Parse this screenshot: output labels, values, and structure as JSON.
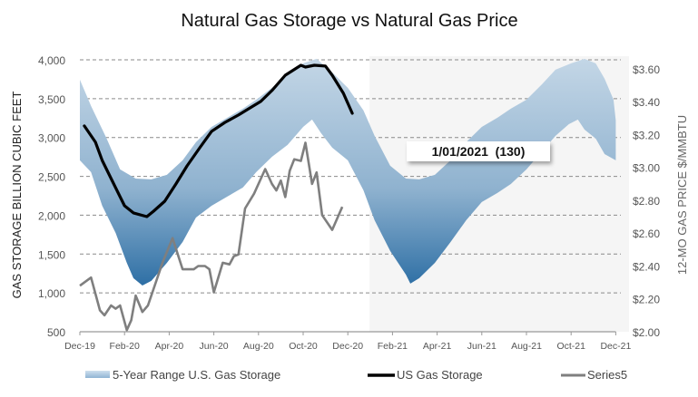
{
  "chart_data": {
    "type": "area",
    "title": "Natural Gas Storage vs Natural Gas Price",
    "ylabel": "GAS STORAGE BILLION CUBIC FEET",
    "y2label": "12-MO GAS PRICE $/MMBTU",
    "ylim": [
      500,
      4000
    ],
    "y2lim": [
      2.0,
      3.655
    ],
    "yticks": [
      "500",
      "1,000",
      "1,500",
      "2,000",
      "2,500",
      "3,000",
      "3,500",
      "4,000"
    ],
    "y2ticks": [
      "$2.00",
      "$2.20",
      "$2.40",
      "$2.60",
      "$2.80",
      "$3.00",
      "$3.20",
      "$3.40",
      "$3.60"
    ],
    "xticks": [
      "Dec-19",
      "Feb-20",
      "Apr-20",
      "Jun-20",
      "Aug-20",
      "Oct-20",
      "Dec-20",
      "Feb-21",
      "Apr-21",
      "Jun-21",
      "Aug-21",
      "Oct-21",
      "Dec-21"
    ],
    "x_unit": "months since Dec-19",
    "grid": true,
    "legend_position": "bottom",
    "forecast_region_start_month": 12.97,
    "annotation": "1/01/2021  (130)",
    "colors": {
      "band_top": "#c3d6e6",
      "band_bottom": "#2569a1",
      "storage": "#000000",
      "series5": "#7f7f7f",
      "forecast_bg": "#f5f5f5"
    },
    "series": [
      {
        "name": "5-Year Range U.S. Gas Storage",
        "axis": "left",
        "upper": [
          [
            0,
            3744
          ],
          [
            0.5,
            3406
          ],
          [
            1.2,
            2986
          ],
          [
            1.8,
            2589
          ],
          [
            2.5,
            2472
          ],
          [
            3.2,
            2461
          ],
          [
            3.9,
            2519
          ],
          [
            4.6,
            2706
          ],
          [
            5.2,
            2939
          ],
          [
            5.9,
            3137
          ],
          [
            6.6,
            3254
          ],
          [
            7.3,
            3371
          ],
          [
            7.9,
            3487
          ],
          [
            8.6,
            3639
          ],
          [
            9.3,
            3803
          ],
          [
            10.0,
            3954
          ],
          [
            10.6,
            4013
          ],
          [
            11.3,
            3838
          ],
          [
            12.0,
            3639
          ],
          [
            12.7,
            3350
          ],
          [
            13.2,
            3021
          ],
          [
            13.9,
            2636
          ],
          [
            14.6,
            2472
          ],
          [
            15.2,
            2461
          ],
          [
            15.9,
            2519
          ],
          [
            16.6,
            2706
          ],
          [
            17.3,
            2939
          ],
          [
            18.0,
            3137
          ],
          [
            18.7,
            3254
          ],
          [
            19.3,
            3371
          ],
          [
            20.0,
            3487
          ],
          [
            20.7,
            3686
          ],
          [
            21.3,
            3873
          ],
          [
            22.0,
            3954
          ],
          [
            22.6,
            4013
          ],
          [
            23.1,
            3954
          ],
          [
            23.5,
            3756
          ],
          [
            23.9,
            3488
          ],
          [
            24.0,
            3219
          ]
        ],
        "lower": [
          [
            0,
            2706
          ],
          [
            0.5,
            2554
          ],
          [
            1.0,
            2122
          ],
          [
            1.6,
            1772
          ],
          [
            2.1,
            1387
          ],
          [
            2.4,
            1189
          ],
          [
            2.8,
            1095
          ],
          [
            3.2,
            1154
          ],
          [
            3.9,
            1387
          ],
          [
            4.6,
            1655
          ],
          [
            5.2,
            1970
          ],
          [
            5.9,
            2122
          ],
          [
            6.6,
            2239
          ],
          [
            7.3,
            2356
          ],
          [
            7.9,
            2554
          ],
          [
            8.6,
            2752
          ],
          [
            9.3,
            2904
          ],
          [
            10.0,
            3137
          ],
          [
            10.4,
            3231
          ],
          [
            10.8,
            3056
          ],
          [
            11.3,
            2869
          ],
          [
            12.0,
            2706
          ],
          [
            12.7,
            2321
          ],
          [
            13.2,
            1935
          ],
          [
            13.9,
            1539
          ],
          [
            14.6,
            1235
          ],
          [
            14.8,
            1119
          ],
          [
            15.2,
            1189
          ],
          [
            15.9,
            1387
          ],
          [
            16.6,
            1655
          ],
          [
            17.3,
            1935
          ],
          [
            18.0,
            2169
          ],
          [
            18.7,
            2286
          ],
          [
            19.3,
            2402
          ],
          [
            20.0,
            2589
          ],
          [
            20.7,
            2822
          ],
          [
            21.3,
            3021
          ],
          [
            21.9,
            3172
          ],
          [
            22.3,
            3231
          ],
          [
            22.6,
            3102
          ],
          [
            23.1,
            2986
          ],
          [
            23.5,
            2787
          ],
          [
            24.0,
            2706
          ]
        ]
      },
      {
        "name": "US Gas Storage",
        "axis": "left",
        "points": [
          [
            0.2,
            3149
          ],
          [
            0.7,
            2939
          ],
          [
            1.0,
            2705
          ],
          [
            1.4,
            2472
          ],
          [
            2.0,
            2122
          ],
          [
            2.4,
            2029
          ],
          [
            3.0,
            1982
          ],
          [
            3.3,
            2052
          ],
          [
            3.8,
            2180
          ],
          [
            4.3,
            2402
          ],
          [
            4.8,
            2635
          ],
          [
            5.4,
            2880
          ],
          [
            5.9,
            3079
          ],
          [
            6.5,
            3195
          ],
          [
            7.1,
            3289
          ],
          [
            7.7,
            3394
          ],
          [
            8.1,
            3464
          ],
          [
            8.6,
            3604
          ],
          [
            9.2,
            3802
          ],
          [
            9.9,
            3930
          ],
          [
            10.1,
            3907
          ],
          [
            10.5,
            3930
          ],
          [
            11.0,
            3919
          ],
          [
            11.3,
            3802
          ],
          [
            11.8,
            3569
          ],
          [
            12.2,
            3312
          ]
        ]
      },
      {
        "name": "Series5",
        "axis": "right",
        "points": [
          [
            0,
            2.28
          ],
          [
            0.5,
            2.33
          ],
          [
            0.9,
            2.13
          ],
          [
            1.1,
            2.1
          ],
          [
            1.4,
            2.16
          ],
          [
            1.6,
            2.14
          ],
          [
            1.8,
            2.16
          ],
          [
            2.1,
            2.01
          ],
          [
            2.3,
            2.07
          ],
          [
            2.5,
            2.22
          ],
          [
            2.8,
            2.12
          ],
          [
            3.05,
            2.16
          ],
          [
            3.7,
            2.42
          ],
          [
            4.15,
            2.57
          ],
          [
            4.6,
            2.38
          ],
          [
            4.9,
            2.38
          ],
          [
            5.1,
            2.38
          ],
          [
            5.3,
            2.4
          ],
          [
            5.6,
            2.4
          ],
          [
            5.8,
            2.38
          ],
          [
            6.0,
            2.24
          ],
          [
            6.4,
            2.42
          ],
          [
            6.7,
            2.41
          ],
          [
            6.9,
            2.46
          ],
          [
            7.1,
            2.47
          ],
          [
            7.4,
            2.75
          ],
          [
            7.8,
            2.84
          ],
          [
            8.3,
            2.99
          ],
          [
            8.6,
            2.9
          ],
          [
            8.8,
            2.86
          ],
          [
            9.0,
            2.92
          ],
          [
            9.2,
            2.82
          ],
          [
            9.4,
            2.98
          ],
          [
            9.6,
            3.05
          ],
          [
            9.9,
            3.04
          ],
          [
            10.1,
            3.15
          ],
          [
            10.4,
            2.9
          ],
          [
            10.6,
            2.97
          ],
          [
            10.85,
            2.71
          ],
          [
            11.3,
            2.62
          ],
          [
            11.75,
            2.76
          ]
        ]
      }
    ]
  }
}
